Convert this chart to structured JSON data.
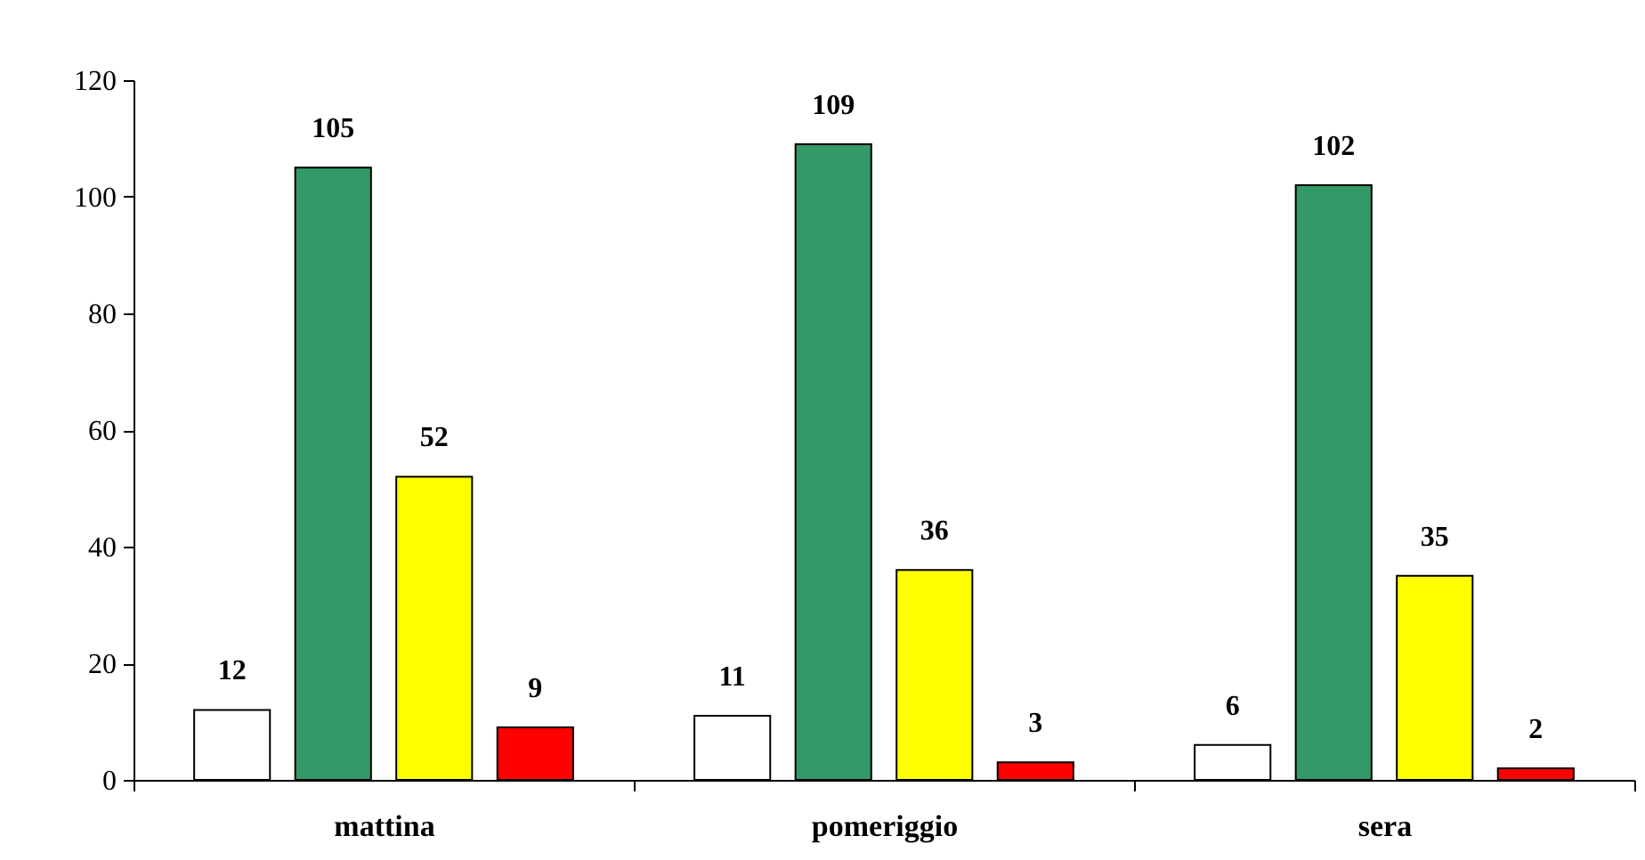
{
  "chart_data": {
    "type": "bar",
    "categories": [
      "mattina",
      "pomeriggio",
      "sera"
    ],
    "series": [
      {
        "color": "#ffffff",
        "values": [
          12,
          11,
          6
        ]
      },
      {
        "color": "#339966",
        "values": [
          105,
          109,
          102
        ]
      },
      {
        "color": "#ffff00",
        "values": [
          52,
          36,
          35
        ]
      },
      {
        "color": "#ff0000",
        "values": [
          9,
          3,
          2
        ]
      }
    ],
    "ylim": [
      0,
      120
    ],
    "yticks": [
      0,
      20,
      40,
      60,
      80,
      100,
      120
    ],
    "grid": false,
    "legend": false,
    "data_labels": true
  }
}
